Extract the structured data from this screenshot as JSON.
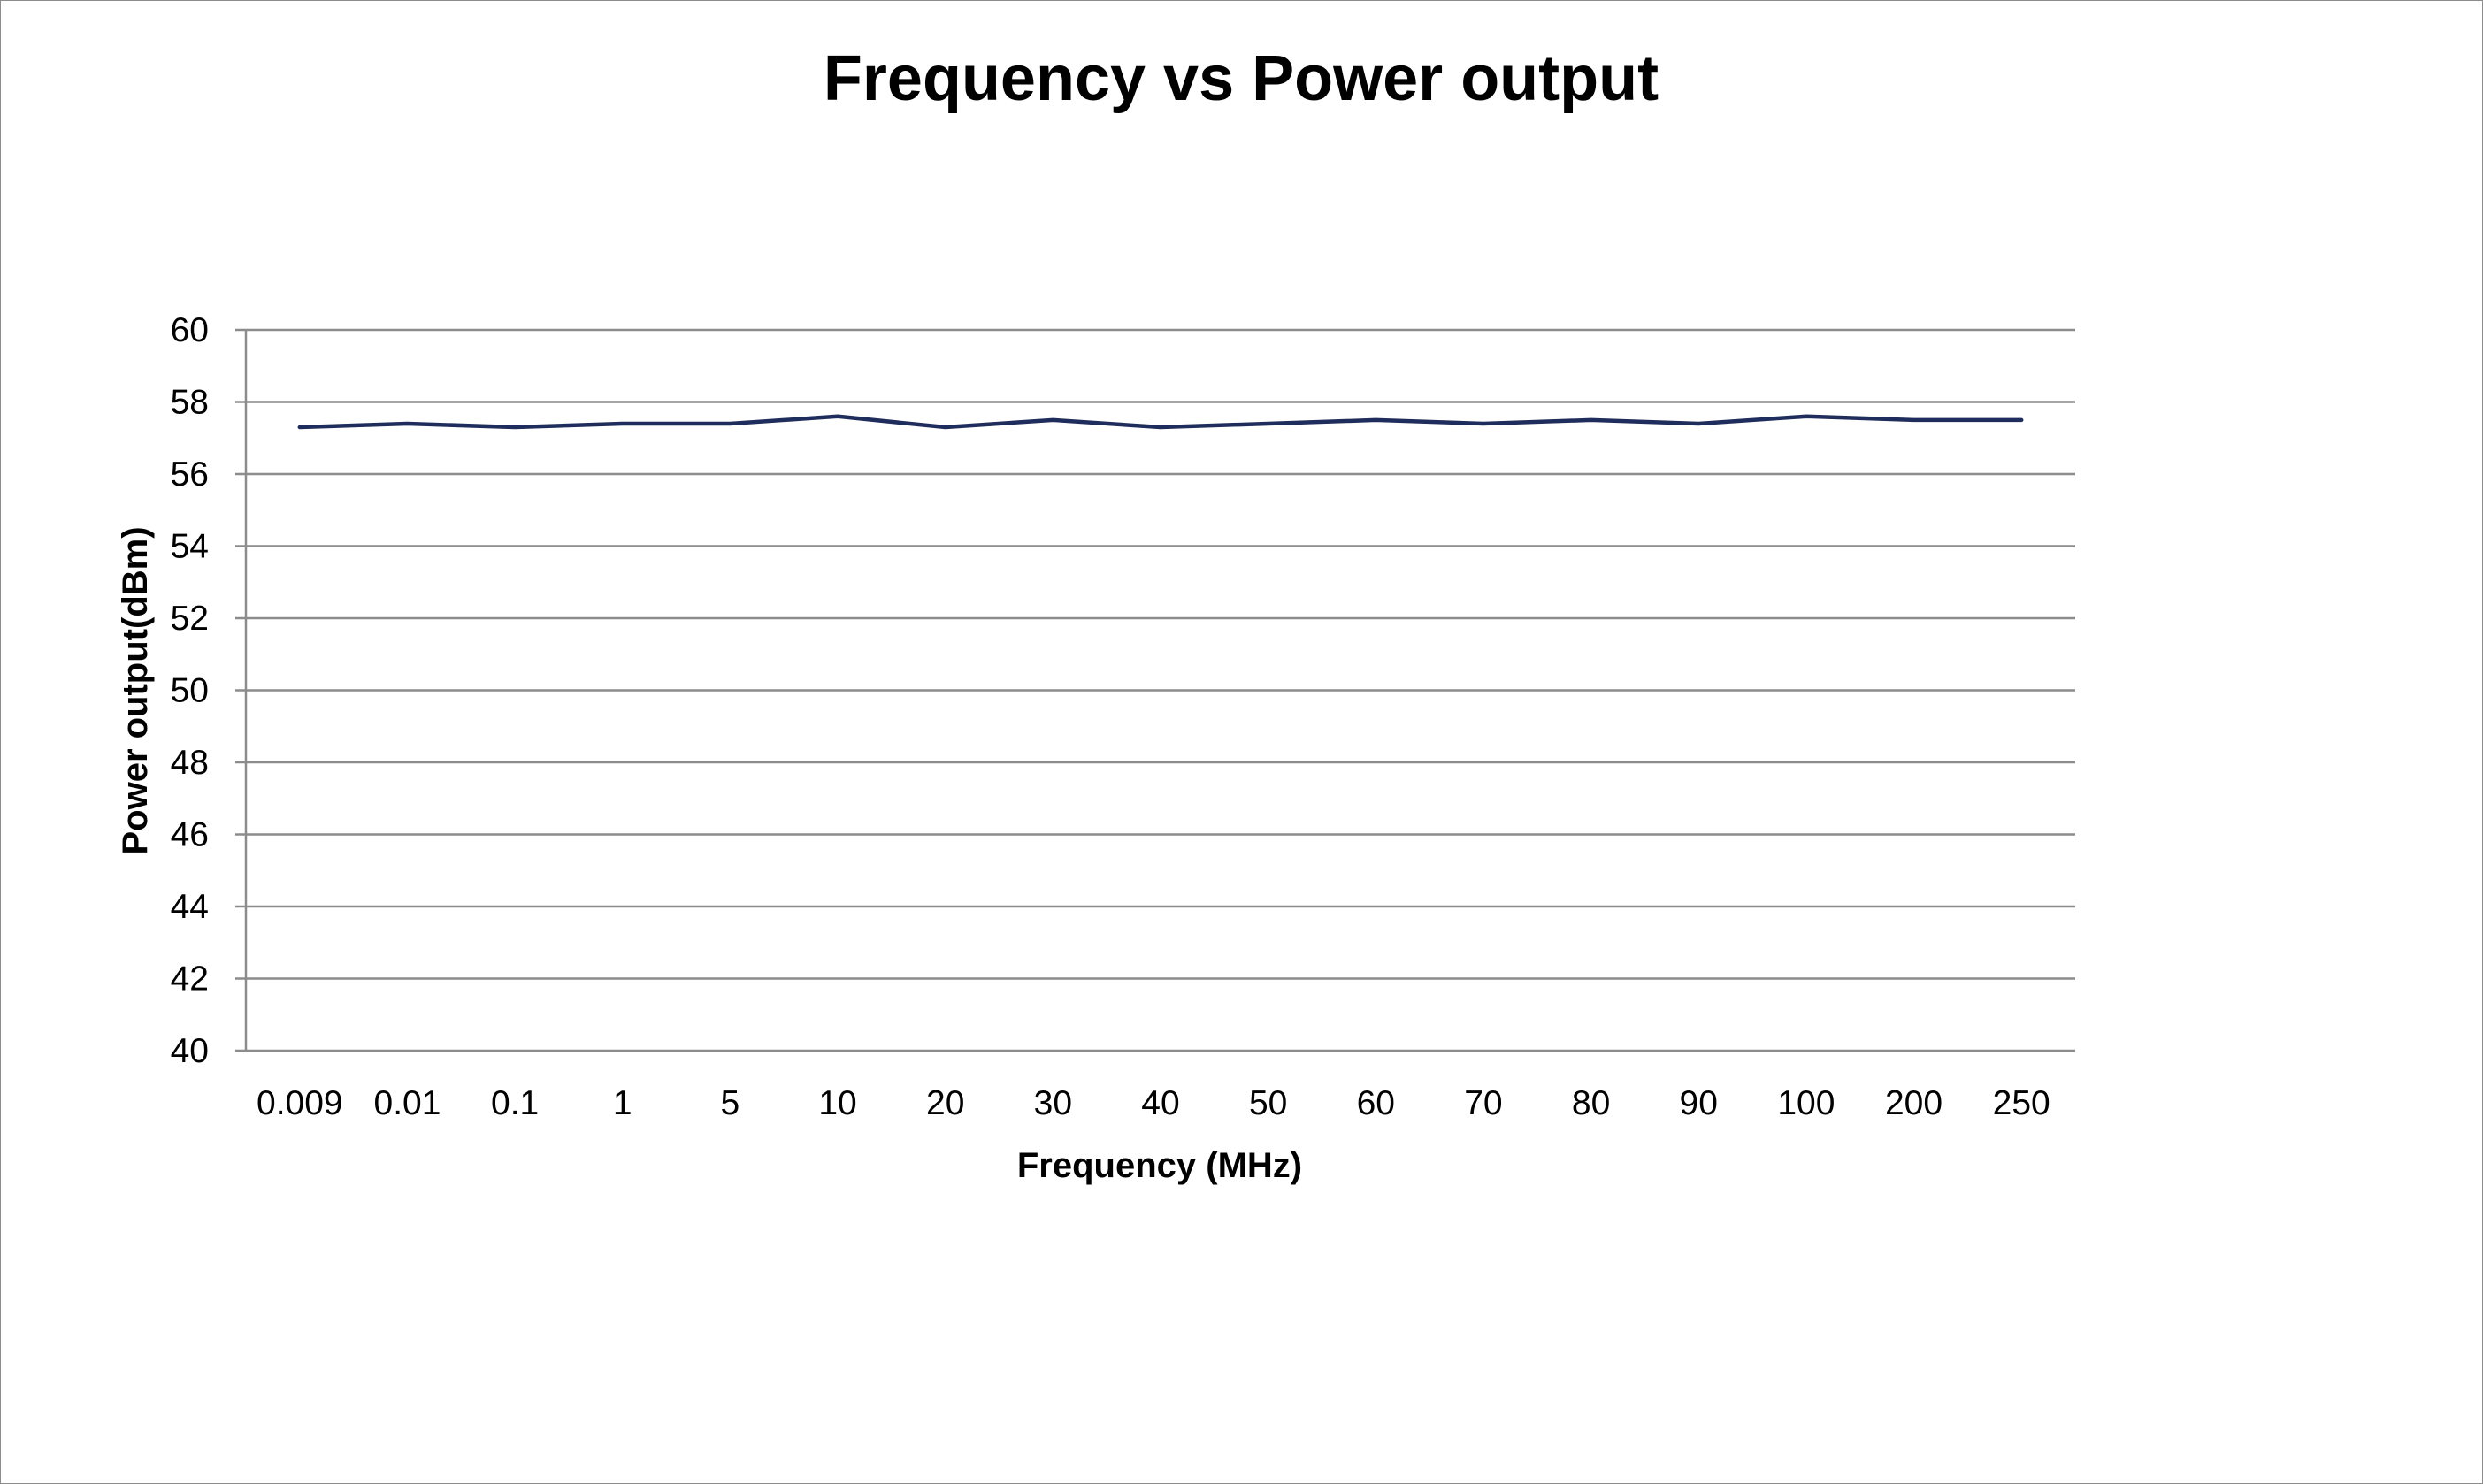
{
  "chart_data": {
    "type": "line",
    "title": "Frequency vs Power output",
    "xlabel": "Frequency (MHz)",
    "ylabel": "Power output(dBm)",
    "categories": [
      "0.009",
      "0.01",
      "0.1",
      "1",
      "5",
      "10",
      "20",
      "30",
      "40",
      "50",
      "60",
      "70",
      "80",
      "90",
      "100",
      "200",
      "250"
    ],
    "series": [
      {
        "values": [
          57.3,
          57.4,
          57.3,
          57.4,
          57.4,
          57.6,
          57.3,
          57.5,
          57.3,
          57.4,
          57.5,
          57.4,
          57.5,
          57.4,
          57.6,
          57.5,
          57.5
        ]
      }
    ],
    "ylim": [
      40,
      60
    ],
    "yticks": [
      40,
      42,
      44,
      46,
      48,
      50,
      52,
      54,
      56,
      58,
      60
    ],
    "grid": true,
    "legend": "none",
    "colors": {
      "line": "#1f2d5c",
      "grid": "#8c8c8c",
      "border": "#8c8c8c"
    }
  }
}
